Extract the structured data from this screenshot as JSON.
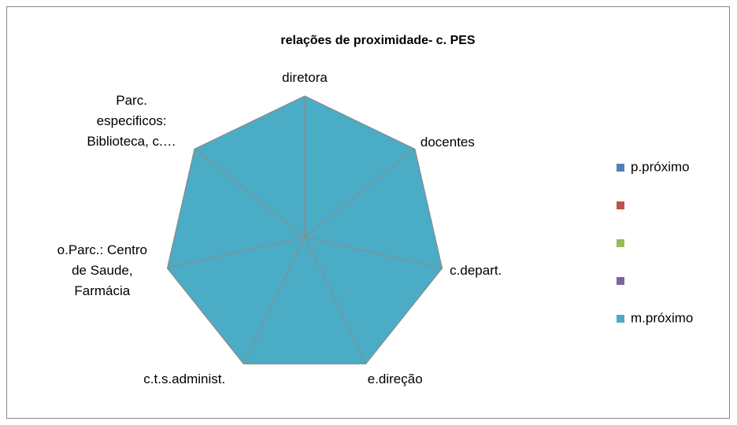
{
  "chart_data": {
    "type": "radar",
    "title": "relações de proximidade- c. PES",
    "categories": [
      "diretora",
      "docentes",
      "c.depart.",
      "e.direção",
      "c.t.s.administ.",
      "o.Parc.: Centro de Saude, Farmácia",
      "Parc. especificos: Biblioteca, c.…"
    ],
    "series": [
      {
        "name": "p.próximo",
        "color": "#4f81bd",
        "values": [
          null,
          null,
          null,
          null,
          null,
          null,
          null
        ]
      },
      {
        "name": null,
        "color": "#c0504d",
        "values": [
          null,
          null,
          null,
          null,
          null,
          null,
          null
        ]
      },
      {
        "name": null,
        "color": "#9bbb59",
        "values": [
          null,
          null,
          null,
          null,
          null,
          null,
          null
        ]
      },
      {
        "name": null,
        "color": "#8064a2",
        "values": [
          null,
          null,
          null,
          null,
          null,
          null,
          null
        ]
      },
      {
        "name": "m.próximo",
        "color": "#4bacc6",
        "values": [
          1,
          1,
          1,
          1,
          1,
          1,
          1
        ]
      }
    ],
    "ylim": [
      0,
      1
    ],
    "legend": "right"
  }
}
